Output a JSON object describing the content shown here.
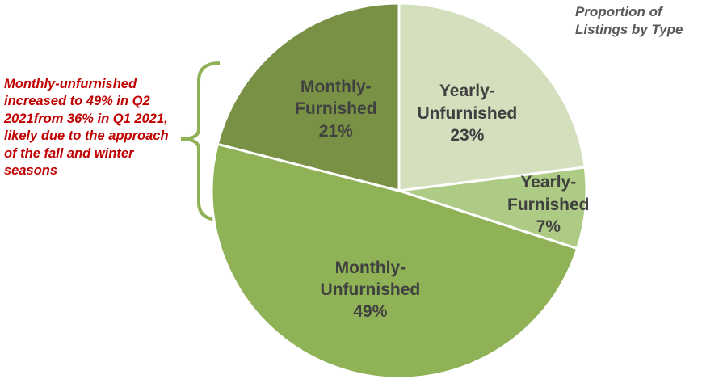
{
  "chart_data": {
    "type": "pie",
    "title": "Proportion of Listings by Type",
    "annotation": "Monthly-unfurnished increased to 49% in Q2 2021from 36% in Q1 2021, likely due to the approach of the fall and winter seasons",
    "categories": [
      "Yearly-Unfurnished",
      "Yearly-Furnished",
      "Monthly-Unfurnished",
      "Monthly-Furnished"
    ],
    "values": [
      23,
      7,
      49,
      21
    ],
    "value_labels": [
      "23%",
      "7%",
      "49%",
      "21%"
    ],
    "colors": [
      "#d3dfbd",
      "#aecb85",
      "#8fb257",
      "#789144"
    ]
  }
}
